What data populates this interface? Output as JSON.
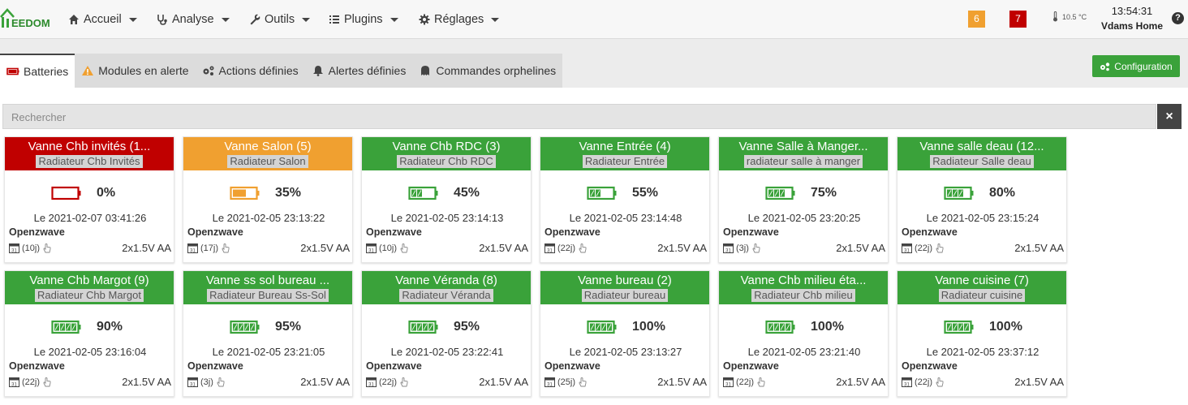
{
  "nav": {
    "brand": "EEDOM",
    "menus": [
      {
        "label": "Accueil",
        "icon": "home-icon"
      },
      {
        "label": "Analyse",
        "icon": "stethoscope-icon"
      },
      {
        "label": "Outils",
        "icon": "wrench-icon"
      },
      {
        "label": "Plugins",
        "icon": "list-icon"
      },
      {
        "label": "Réglages",
        "icon": "cog-icon"
      }
    ],
    "badge_warning": "6",
    "badge_danger": "7",
    "temperature": "10.5 °C",
    "time": "13:54:31",
    "home_name": "Vdams Home",
    "help": "?"
  },
  "tabs": [
    {
      "label": "Batteries",
      "icon": "battery-icon"
    },
    {
      "label": "Modules en alerte",
      "icon": "warning-icon"
    },
    {
      "label": "Actions définies",
      "icon": "cogs-icon"
    },
    {
      "label": "Alertes définies",
      "icon": "bell-icon"
    },
    {
      "label": "Commandes orphelines",
      "icon": "ghost-icon"
    }
  ],
  "config_label": "Configuration",
  "search": {
    "placeholder": "Rechercher",
    "clear": "×"
  },
  "colors": {
    "danger": "#c00000",
    "warning": "#f0a030",
    "success": "#3aa23a"
  },
  "cards": [
    {
      "title": "Vanne Chb invités (1...",
      "sub": "Radiateur Chb Invités",
      "level": 0,
      "pct": "0%",
      "date": "Le 2021-02-07 03:41:26",
      "proto": "Openzwave",
      "days": "(10j)",
      "type": "2x1.5V AA",
      "status": "danger"
    },
    {
      "title": "Vanne Salon (5)",
      "sub": "Radiateur Salon",
      "level": 35,
      "pct": "35%",
      "date": "Le 2021-02-05 23:13:22",
      "proto": "Openzwave",
      "days": "(17j)",
      "type": "2x1.5V AA",
      "status": "warning"
    },
    {
      "title": "Vanne Chb RDC (3)",
      "sub": "Radiateur Chb RDC",
      "level": 45,
      "pct": "45%",
      "date": "Le 2021-02-05 23:14:13",
      "proto": "Openzwave",
      "days": "(10j)",
      "type": "2x1.5V AA",
      "status": "success"
    },
    {
      "title": "Vanne Entrée (4)",
      "sub": "Radiateur Entrée",
      "level": 55,
      "pct": "55%",
      "date": "Le 2021-02-05 23:14:48",
      "proto": "Openzwave",
      "days": "(22j)",
      "type": "2x1.5V AA",
      "status": "success"
    },
    {
      "title": "Vanne Salle à Manger...",
      "sub": "radiateur salle à manger",
      "level": 75,
      "pct": "75%",
      "date": "Le 2021-02-05 23:20:25",
      "proto": "Openzwave",
      "days": "(3j)",
      "type": "2x1.5V AA",
      "status": "success"
    },
    {
      "title": "Vanne salle deau (12...",
      "sub": "Radiateur Salle deau",
      "level": 80,
      "pct": "80%",
      "date": "Le 2021-02-05 23:15:24",
      "proto": "Openzwave",
      "days": "(22j)",
      "type": "2x1.5V AA",
      "status": "success"
    },
    {
      "title": "Vanne Chb Margot (9)",
      "sub": "Radiateur Chb Margot",
      "level": 90,
      "pct": "90%",
      "date": "Le 2021-02-05 23:16:04",
      "proto": "Openzwave",
      "days": "(22j)",
      "type": "2x1.5V AA",
      "status": "success"
    },
    {
      "title": "Vanne ss sol bureau ...",
      "sub": "Radiateur Bureau Ss-Sol",
      "level": 95,
      "pct": "95%",
      "date": "Le 2021-02-05 23:21:05",
      "proto": "Openzwave",
      "days": "(3j)",
      "type": "2x1.5V AA",
      "status": "success"
    },
    {
      "title": "Vanne Véranda (8)",
      "sub": "Radiateur Véranda",
      "level": 95,
      "pct": "95%",
      "date": "Le 2021-02-05 23:22:41",
      "proto": "Openzwave",
      "days": "(22j)",
      "type": "2x1.5V AA",
      "status": "success"
    },
    {
      "title": "Vanne bureau (2)",
      "sub": "Radiateur bureau",
      "level": 100,
      "pct": "100%",
      "date": "Le 2021-02-05 23:13:27",
      "proto": "Openzwave",
      "days": "(25j)",
      "type": "2x1.5V AA",
      "status": "success"
    },
    {
      "title": "Vanne Chb milieu éta...",
      "sub": "Radiateur Chb milieu",
      "level": 100,
      "pct": "100%",
      "date": "Le 2021-02-05 23:21:40",
      "proto": "Openzwave",
      "days": "(22j)",
      "type": "2x1.5V AA",
      "status": "success"
    },
    {
      "title": "Vanne cuisine (7)",
      "sub": "Radiateur cuisine",
      "level": 100,
      "pct": "100%",
      "date": "Le 2021-02-05 23:37:12",
      "proto": "Openzwave",
      "days": "(22j)",
      "type": "2x1.5V AA",
      "status": "success"
    }
  ]
}
